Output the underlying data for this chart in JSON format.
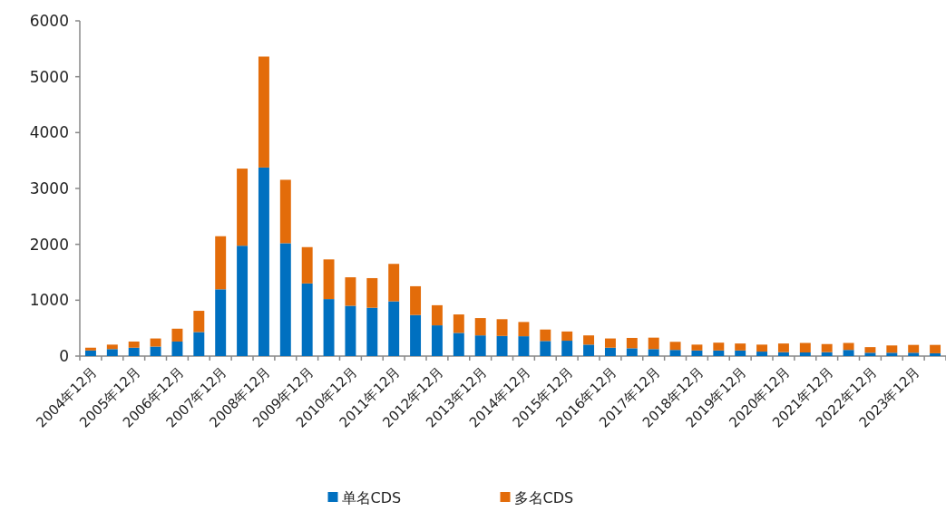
{
  "chart_data": {
    "type": "bar",
    "stacked": true,
    "legend": "bottom",
    "categories": [
      "2004年12月",
      null,
      "2005年12月",
      null,
      "2006年12月",
      null,
      "2007年12月",
      null,
      "2008年12月",
      null,
      "2009年12月",
      null,
      "2010年12月",
      null,
      "2011年12月",
      null,
      "2012年12月",
      null,
      "2013年12月",
      null,
      "2014年12月",
      null,
      "2015年12月",
      null,
      "2016年12月",
      null,
      "2017年12月",
      null,
      "2018年12月",
      null,
      "2019年12月",
      null,
      "2020年12月",
      null,
      "2021年12月",
      null,
      "2022年12月",
      null,
      "2023年12月",
      null
    ],
    "series": [
      {
        "name": "单名CDS",
        "color": "#0070c0",
        "values": [
          100,
          125,
          150,
          170,
          260,
          430,
          1195,
          1975,
          3375,
          2020,
          1300,
          1020,
          900,
          865,
          980,
          735,
          550,
          415,
          370,
          360,
          355,
          270,
          275,
          205,
          150,
          140,
          125,
          110,
          100,
          100,
          100,
          80,
          70,
          65,
          70,
          110,
          60,
          60,
          60,
          50
        ]
      },
      {
        "name": "多名CDS",
        "color": "#e36c0a",
        "values": [
          50,
          80,
          110,
          145,
          230,
          380,
          950,
          1380,
          1985,
          1135,
          650,
          710,
          510,
          530,
          670,
          515,
          360,
          330,
          310,
          300,
          255,
          205,
          165,
          165,
          165,
          185,
          205,
          145,
          105,
          140,
          125,
          125,
          155,
          170,
          145,
          125,
          100,
          130,
          140,
          150
        ]
      }
    ],
    "ylim": [
      0,
      6000
    ],
    "yticks": [
      0,
      1000,
      2000,
      3000,
      4000,
      5000,
      6000
    ]
  }
}
